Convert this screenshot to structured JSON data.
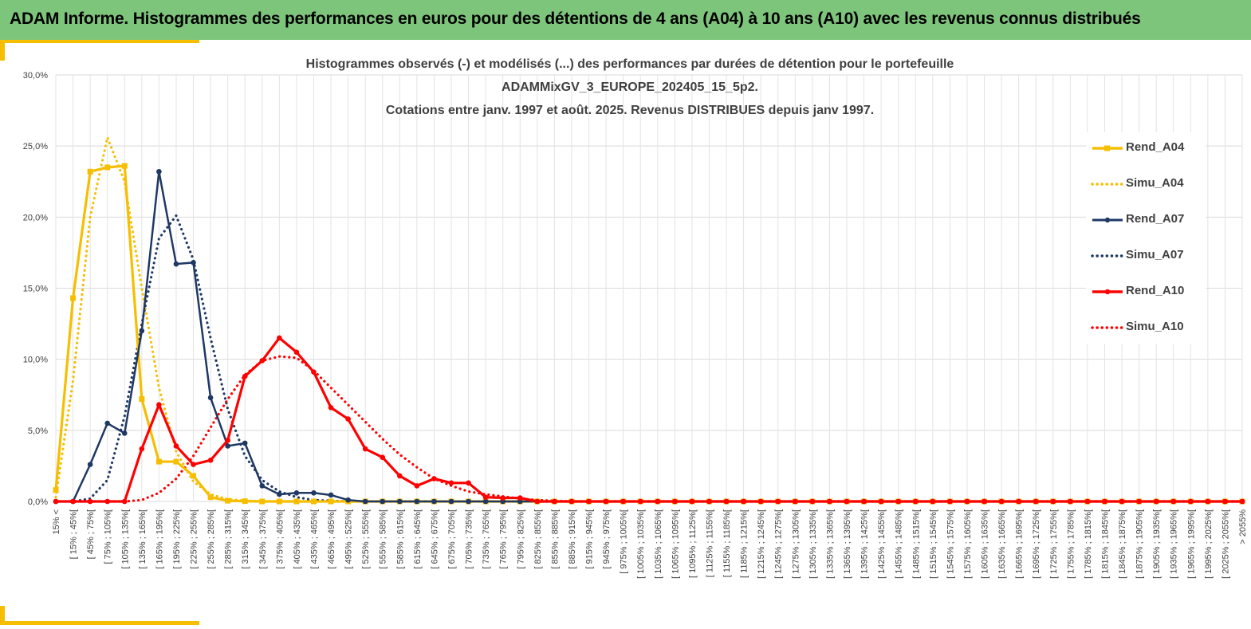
{
  "banner": {
    "title": "ADAM Informe. Histogrammes des performances en euros pour des détentions de 4 ans (A04) à 10 ans (A10) avec les revenus connus distribués"
  },
  "colors": {
    "banner_bg": "#7ec57c",
    "accent": "#f6be00",
    "series_A04": "#f6be00",
    "series_A07": "#1f3864",
    "series_A10": "#ff0000",
    "grid": "#d9d9d9",
    "text": "#404040"
  },
  "chart_data": {
    "type": "line",
    "title_lines": [
      "Histogrammes observés (-) et modélisés (...) des performances par durées de détention pour le portefeuille",
      "ADAMMixGV_3_EUROPE_202405_15_5p2.",
      "Cotations entre janv. 1997 et août. 2025. Revenus DISTRIBUES depuis janv 1997."
    ],
    "xlabel": "",
    "ylabel": "",
    "ylim": [
      0,
      30
    ],
    "y_ticks": [
      "0,0%",
      "5,0%",
      "10,0%",
      "15,0%",
      "20,0%",
      "25,0%",
      "30,0%"
    ],
    "grid": true,
    "legend_position": "right",
    "categories": [
      "15% <",
      "[ 15% ; 45%[",
      "[ 45% ; 75%[",
      "[ 75% ; 105%[",
      "[ 105% ; 135%[",
      "[ 135% ; 165%[",
      "[ 165% ; 195%[",
      "[ 195% ; 225%[",
      "[ 225% ; 255%[",
      "[ 255% ; 285%[",
      "[ 285% ; 315%[",
      "[ 315% ; 345%[",
      "[ 345% ; 375%[",
      "[ 375% ; 405%[",
      "[ 405% ; 435%[",
      "[ 435% ; 465%[",
      "[ 465% ; 495%[",
      "[ 495% ; 525%[",
      "[ 525% ; 555%[",
      "[ 555% ; 585%[",
      "[ 585% ; 615%[",
      "[ 615% ; 645%[",
      "[ 645% ; 675%[",
      "[ 675% ; 705%[",
      "[ 705% ; 735%[",
      "[ 735% ; 765%[",
      "[ 765% ; 795%[",
      "[ 795% ; 825%[",
      "[ 825% ; 855%[",
      "[ 855% ; 885%[",
      "[ 885% ; 915%[",
      "[ 915% ; 945%[",
      "[ 945% ; 975%[",
      "[ 975% ; 1005%[",
      "[ 1005% ; 1035%[",
      "[ 1035% ; 1065%[",
      "[ 1065% ; 1095%[",
      "[ 1095% ; 1125%[",
      "[ 1125% ; 1155%[",
      "[ 1155% ; 1185%[",
      "[ 1185% ; 1215%[",
      "[ 1215% ; 1245%[",
      "[ 1245% ; 1275%[",
      "[ 1275% ; 1305%[",
      "[ 1305% ; 1335%[",
      "[ 1335% ; 1365%[",
      "[ 1365% ; 1395%[",
      "[ 1395% ; 1425%[",
      "[ 1425% ; 1455%[",
      "[ 1455% ; 1485%[",
      "[ 1485% ; 1515%[",
      "[ 1515% ; 1545%[",
      "[ 1545% ; 1575%[",
      "[ 1575% ; 1605%[",
      "[ 1605% ; 1635%[",
      "[ 1635% ; 1665%[",
      "[ 1665% ; 1695%[",
      "[ 1695% ; 1725%[",
      "[ 1725% ; 1755%[",
      "[ 1755% ; 1785%[",
      "[ 1785% ; 1815%[",
      "[ 1815% ; 1845%[",
      "[ 1845% ; 1875%[",
      "[ 1875% ; 1905%[",
      "[ 1905% ; 1935%[",
      "[ 1935% ; 1965%[",
      "[ 1965% ; 1995%[",
      "[ 1995% ; 2025%[",
      "[ 2025% ; 2055%[",
      "> 2055%"
    ],
    "series": [
      {
        "name": "Rend_A04",
        "style": "solid",
        "color": "#f6be00",
        "values": [
          0.8,
          14.3,
          23.2,
          23.5,
          23.6,
          7.2,
          2.8,
          2.8,
          1.8,
          0.3,
          0.05,
          0.02,
          0.0,
          0.0,
          0.0,
          0.0,
          0.0,
          0.0,
          0.0,
          0.0,
          0.0,
          0.0,
          0.0,
          0.0,
          0.0,
          0.0,
          0.0,
          0.0,
          0.0,
          0.0,
          0.0,
          0.0,
          0.0,
          0.0,
          0.0,
          0.0,
          0.0,
          0.0,
          0.0,
          0.0,
          0.0,
          0.0,
          0.0,
          0.0,
          0.0,
          0.0,
          0.0,
          0.0,
          0.0,
          0.0,
          0.0,
          0.0,
          0.0,
          0.0,
          0.0,
          0.0,
          0.0,
          0.0,
          0.0,
          0.0,
          0.0,
          0.0,
          0.0,
          0.0,
          0.0,
          0.0,
          0.0,
          0.0,
          0.0,
          0.0
        ]
      },
      {
        "name": "Simu_A04",
        "style": "dotted",
        "color": "#f6be00",
        "values": [
          0.3,
          8.5,
          20.0,
          25.6,
          22.5,
          15.0,
          8.0,
          3.5,
          1.4,
          0.5,
          0.15,
          0.05,
          0.0,
          0.0,
          0.0,
          0.0,
          0.0,
          0.0,
          0.0,
          0.0,
          0.0,
          0.0,
          0.0,
          0.0,
          0.0,
          0.0,
          0.0,
          0.0,
          0.0,
          0.0,
          0.0,
          0.0,
          0.0,
          0.0,
          0.0,
          0.0,
          0.0,
          0.0,
          0.0,
          0.0,
          0.0,
          0.0,
          0.0,
          0.0,
          0.0,
          0.0,
          0.0,
          0.0,
          0.0,
          0.0,
          0.0,
          0.0,
          0.0,
          0.0,
          0.0,
          0.0,
          0.0,
          0.0,
          0.0,
          0.0,
          0.0,
          0.0,
          0.0,
          0.0,
          0.0,
          0.0,
          0.0,
          0.0,
          0.0,
          0.0
        ]
      },
      {
        "name": "Rend_A07",
        "style": "solid",
        "color": "#1f3864",
        "values": [
          0.0,
          0.0,
          2.6,
          5.5,
          4.8,
          12.0,
          23.2,
          16.7,
          16.8,
          7.3,
          3.9,
          4.1,
          1.1,
          0.5,
          0.6,
          0.6,
          0.45,
          0.1,
          0.0,
          0.0,
          0.0,
          0.0,
          0.0,
          0.0,
          0.0,
          0.0,
          0.0,
          0.0,
          0.0,
          0.0,
          0.0,
          0.0,
          0.0,
          0.0,
          0.0,
          0.0,
          0.0,
          0.0,
          0.0,
          0.0,
          0.0,
          0.0,
          0.0,
          0.0,
          0.0,
          0.0,
          0.0,
          0.0,
          0.0,
          0.0,
          0.0,
          0.0,
          0.0,
          0.0,
          0.0,
          0.0,
          0.0,
          0.0,
          0.0,
          0.0,
          0.0,
          0.0,
          0.0,
          0.0,
          0.0,
          0.0,
          0.0,
          0.0,
          0.0,
          0.0
        ]
      },
      {
        "name": "Simu_A07",
        "style": "dotted",
        "color": "#1f3864",
        "values": [
          0.0,
          0.0,
          0.2,
          1.5,
          6.0,
          12.5,
          18.5,
          20.1,
          17.0,
          11.5,
          6.5,
          3.2,
          1.5,
          0.7,
          0.3,
          0.1,
          0.05,
          0.0,
          0.0,
          0.0,
          0.0,
          0.0,
          0.0,
          0.0,
          0.0,
          0.0,
          0.0,
          0.0,
          0.0,
          0.0,
          0.0,
          0.0,
          0.0,
          0.0,
          0.0,
          0.0,
          0.0,
          0.0,
          0.0,
          0.0,
          0.0,
          0.0,
          0.0,
          0.0,
          0.0,
          0.0,
          0.0,
          0.0,
          0.0,
          0.0,
          0.0,
          0.0,
          0.0,
          0.0,
          0.0,
          0.0,
          0.0,
          0.0,
          0.0,
          0.0,
          0.0,
          0.0,
          0.0,
          0.0,
          0.0,
          0.0,
          0.0,
          0.0,
          0.0,
          0.0
        ]
      },
      {
        "name": "Rend_A10",
        "style": "solid",
        "color": "#ff0000",
        "values": [
          0.0,
          0.0,
          0.0,
          0.0,
          0.0,
          3.7,
          6.8,
          3.9,
          2.6,
          2.9,
          4.3,
          8.8,
          9.9,
          11.5,
          10.5,
          9.1,
          6.6,
          5.8,
          3.7,
          3.1,
          1.8,
          1.1,
          1.6,
          1.3,
          1.3,
          0.3,
          0.25,
          0.25,
          0.0,
          0.0,
          0.0,
          0.0,
          0.0,
          0.0,
          0.0,
          0.0,
          0.0,
          0.0,
          0.0,
          0.0,
          0.0,
          0.0,
          0.0,
          0.0,
          0.0,
          0.0,
          0.0,
          0.0,
          0.0,
          0.0,
          0.0,
          0.0,
          0.0,
          0.0,
          0.0,
          0.0,
          0.0,
          0.0,
          0.0,
          0.0,
          0.0,
          0.0,
          0.0,
          0.0,
          0.0,
          0.0,
          0.0,
          0.0,
          0.0,
          0.0
        ]
      },
      {
        "name": "Simu_A10",
        "style": "dotted",
        "color": "#ff0000",
        "values": [
          0.0,
          0.0,
          0.0,
          0.0,
          0.0,
          0.1,
          0.6,
          1.6,
          3.2,
          5.2,
          7.2,
          8.9,
          9.9,
          10.2,
          10.1,
          9.2,
          8.0,
          6.8,
          5.6,
          4.4,
          3.3,
          2.4,
          1.6,
          1.1,
          0.7,
          0.5,
          0.35,
          0.2,
          0.1,
          0.05,
          0.0,
          0.0,
          0.0,
          0.0,
          0.0,
          0.0,
          0.0,
          0.0,
          0.0,
          0.0,
          0.0,
          0.0,
          0.0,
          0.0,
          0.0,
          0.0,
          0.0,
          0.0,
          0.0,
          0.0,
          0.0,
          0.0,
          0.0,
          0.0,
          0.0,
          0.0,
          0.0,
          0.0,
          0.0,
          0.0,
          0.0,
          0.0,
          0.0,
          0.0,
          0.0,
          0.0,
          0.0,
          0.0,
          0.0,
          0.0
        ]
      }
    ]
  }
}
